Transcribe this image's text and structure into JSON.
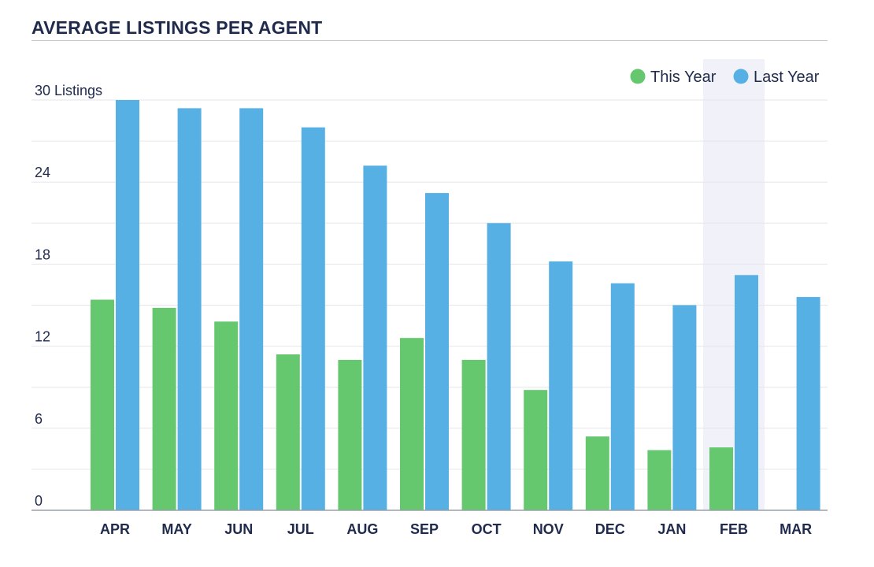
{
  "title": "AVERAGE LISTINGS PER AGENT",
  "colors": {
    "this_year": "#66c86e",
    "last_year": "#56b0e4",
    "highlight": "#f1f2f9",
    "text": "#1f2a4d",
    "grid": "#e4e6ea"
  },
  "chart_data": {
    "type": "bar",
    "title": "AVERAGE LISTINGS PER AGENT",
    "xlabel": "",
    "ylabel": "",
    "ylim": [
      0,
      30
    ],
    "y_ticks": [
      "0",
      "6",
      "12",
      "18",
      "24",
      "30 Listings"
    ],
    "categories": [
      "APR",
      "MAY",
      "JUN",
      "JUL",
      "AUG",
      "SEP",
      "OCT",
      "NOV",
      "DEC",
      "JAN",
      "FEB",
      "MAR"
    ],
    "series": [
      {
        "name": "This Year",
        "values": [
          15.4,
          14.8,
          13.8,
          11.4,
          11.0,
          12.6,
          11.0,
          8.8,
          5.4,
          4.4,
          4.6,
          null
        ]
      },
      {
        "name": "Last Year",
        "values": [
          30.0,
          29.4,
          29.4,
          28.0,
          25.2,
          23.2,
          21.0,
          18.2,
          16.6,
          15.0,
          17.2,
          15.6
        ]
      }
    ],
    "highlighted_category": "FEB",
    "legend": "top-right",
    "grid": true
  }
}
